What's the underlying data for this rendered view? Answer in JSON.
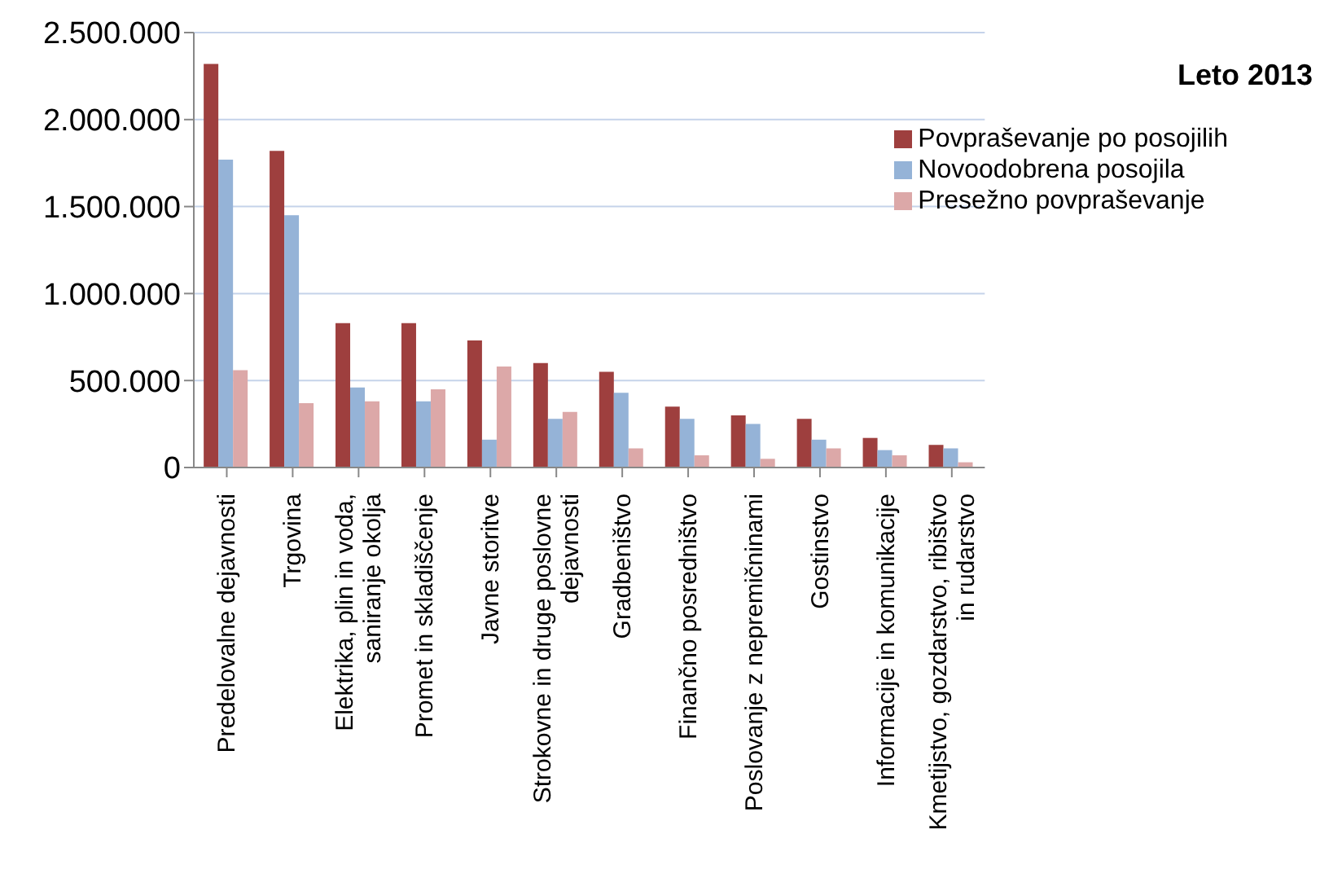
{
  "chart_data": {
    "type": "bar",
    "title": "Leto 2013",
    "categories": [
      "Predelovalne dejavnosti",
      "Trgovina",
      "Elektrika, plin in voda, saniranje okolja",
      "Promet in skladiščenje",
      "Javne storitve",
      "Strokovne in druge poslovne dejavnosti",
      "Gradbeništvo",
      "Finančno posredništvo",
      "Poslovanje z nepremičninami",
      "Gostinstvo",
      "Informacije in komunikacije",
      "Kmetijstvo, gozdarstvo, ribištvo in rudarstvo"
    ],
    "series": [
      {
        "name": "Povpraševanje po posojilih",
        "color": "#9e3f3e",
        "values": [
          2320000,
          1820000,
          830000,
          830000,
          730000,
          600000,
          550000,
          350000,
          300000,
          280000,
          170000,
          130000
        ]
      },
      {
        "name": "Novoodobrena posojila",
        "color": "#95b3d7",
        "values": [
          1770000,
          1450000,
          460000,
          380000,
          160000,
          280000,
          430000,
          280000,
          250000,
          160000,
          100000,
          110000
        ]
      },
      {
        "name": "Presežno povpraševanje",
        "color": "#dca8a8",
        "values": [
          560000,
          370000,
          380000,
          450000,
          580000,
          320000,
          110000,
          70000,
          50000,
          110000,
          70000,
          30000
        ]
      }
    ],
    "ylim": [
      0,
      2500000
    ],
    "yticks": [
      {
        "value": 0,
        "label": "0"
      },
      {
        "value": 500000,
        "label": "500.000"
      },
      {
        "value": 1000000,
        "label": "1.000.000"
      },
      {
        "value": 1500000,
        "label": "1.500.000"
      },
      {
        "value": 2000000,
        "label": "2.000.000"
      },
      {
        "value": 2500000,
        "label": "2.500.000"
      }
    ],
    "grid": "y",
    "legend": "top right"
  }
}
